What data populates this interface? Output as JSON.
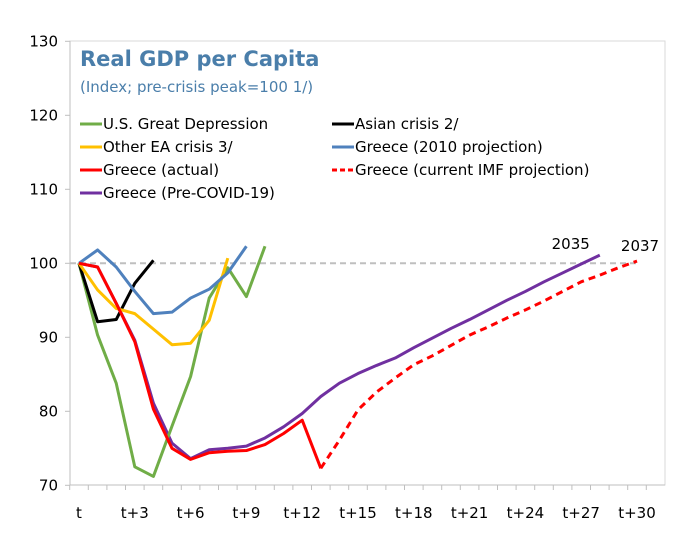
{
  "chart_data": {
    "type": "line",
    "title": "Real GDP per Capita",
    "subtitle": "(Index; pre-crisis peak=100 1/)",
    "ylim": [
      70,
      130
    ],
    "yticks": [
      70,
      80,
      90,
      100,
      110,
      120,
      130
    ],
    "xticks": [
      {
        "x": 0,
        "label": "t"
      },
      {
        "x": 3,
        "label": "t+3"
      },
      {
        "x": 6,
        "label": "t+6"
      },
      {
        "x": 9,
        "label": "t+9"
      },
      {
        "x": 12,
        "label": "t+12"
      },
      {
        "x": 15,
        "label": "t+15"
      },
      {
        "x": 18,
        "label": "t+18"
      },
      {
        "x": 21,
        "label": "t+21"
      },
      {
        "x": 24,
        "label": "t+24"
      },
      {
        "x": 27,
        "label": "t+27"
      },
      {
        "x": 30,
        "label": "t+30"
      }
    ],
    "reference_line": 100,
    "annotations": [
      {
        "text": "2035",
        "x": 28,
        "y": 101.1
      },
      {
        "text": "2037",
        "x": 30,
        "y": 100.3
      }
    ],
    "series": [
      {
        "name": "U.S. Great Depression",
        "color": "#70AD47",
        "dash": false,
        "start": 0,
        "values": [
          100,
          90.3,
          83.8,
          72.5,
          71.2,
          78,
          84.7,
          95.3,
          99.4,
          95.5,
          102.3
        ]
      },
      {
        "name": "Asian crisis 2/",
        "color": "#000000",
        "dash": false,
        "start": 0,
        "values": [
          100,
          92.1,
          92.4,
          97.3,
          100.4
        ]
      },
      {
        "name": "Other EA crisis 3/",
        "color": "#FFC000",
        "dash": false,
        "start": 0,
        "values": [
          100,
          96.4,
          93.9,
          93.2,
          91.1,
          89,
          89.2,
          92.3,
          100.7
        ]
      },
      {
        "name": "Greece (2010 projection)",
        "color": "#4F81BD",
        "dash": false,
        "start": 0,
        "values": [
          100,
          101.8,
          99.5,
          96.2,
          93.2,
          93.4,
          95.3,
          96.5,
          98.7,
          102.3
        ]
      },
      {
        "name": "Greece (actual)",
        "color": "#FF0000",
        "dash": false,
        "start": 0,
        "values": [
          100,
          99.5,
          94.6,
          89.4,
          80.3,
          75,
          73.5,
          74.4,
          74.6,
          74.7,
          75.5,
          77,
          78.8,
          72.3
        ]
      },
      {
        "name": "Greece (current IMF projection)",
        "color": "#FF0000",
        "dash": true,
        "start": 13,
        "values": [
          72.3,
          76.1,
          80.2,
          82.6,
          84.5,
          86.3,
          87.5,
          88.9,
          90.3,
          91.4,
          92.6,
          93.7,
          94.9,
          96.2,
          97.5,
          98.4,
          99.4,
          100.3
        ]
      },
      {
        "name": "Greece (Pre-COVID-19)",
        "color": "#7030A0",
        "dash": false,
        "start": 0,
        "values": [
          100,
          99.5,
          94.6,
          89.6,
          81.1,
          75.7,
          73.6,
          74.8,
          75,
          75.3,
          76.4,
          77.9,
          79.7,
          82,
          83.8,
          85.1,
          86.2,
          87.2,
          88.6,
          89.9,
          91.2,
          92.4,
          93.7,
          95,
          96.2,
          97.5,
          98.7,
          99.9,
          101.1
        ]
      }
    ]
  }
}
